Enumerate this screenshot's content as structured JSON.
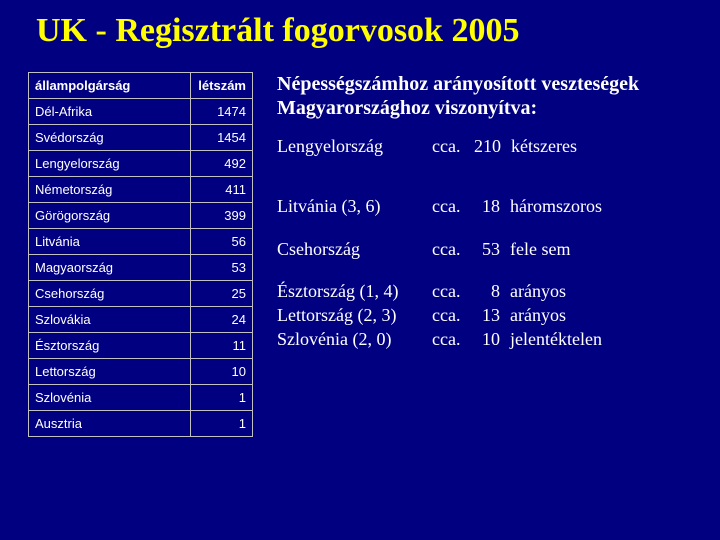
{
  "title": "UK - Regisztrált fogorvosok 2005",
  "table": {
    "headers": {
      "col1": "állampolgárság",
      "col2": "létszám"
    },
    "rows": [
      {
        "country": "Dél-Afrika",
        "count": "1474"
      },
      {
        "country": "Svédország",
        "count": "1454"
      },
      {
        "country": "Lengyelország",
        "count": "492"
      },
      {
        "country": "Németország",
        "count": "411"
      },
      {
        "country": "Görögország",
        "count": "399"
      },
      {
        "country": "Litvánia",
        "count": "56"
      },
      {
        "country": "Magyaország",
        "count": "53"
      },
      {
        "country": "Csehország",
        "count": "25"
      },
      {
        "country": "Szlovákia",
        "count": "24"
      },
      {
        "country": "Észtország",
        "count": "11"
      },
      {
        "country": "Lettország",
        "count": "10"
      },
      {
        "country": "Szlovénia",
        "count": "1"
      },
      {
        "country": "Ausztria",
        "count": "1"
      }
    ]
  },
  "right": {
    "subtitle": "Népességszámhoz arányosított veszteségek Magyarországhoz viszonyítva:",
    "rows": [
      {
        "country": "Lengyelország",
        "cca": "cca.",
        "val": "210",
        "note": "kétszeres",
        "gap_after": "lg"
      },
      {
        "country": "Litvánia (3, 6)",
        "cca": "cca.",
        "val": "18",
        "note": "háromszoros",
        "gap_after": "md"
      },
      {
        "country": "Csehország",
        "cca": "cca.",
        "val": "53",
        "note": "fele sem",
        "gap_after": "md"
      },
      {
        "country": "Észtország (1, 4)",
        "cca": "cca.",
        "val": "8",
        "note": "arányos",
        "gap_after": ""
      },
      {
        "country": "Lettország (2, 3)",
        "cca": "cca.",
        "val": "13",
        "note": "arányos",
        "gap_after": ""
      },
      {
        "country": "Szlovénia (2, 0)",
        "cca": "cca.",
        "val": "10",
        "note": "jelentéktelen",
        "gap_after": ""
      }
    ]
  },
  "colors": {
    "background": "#000080",
    "title": "#ffff00",
    "text": "#ffffff",
    "border": "#c0c0c0"
  }
}
